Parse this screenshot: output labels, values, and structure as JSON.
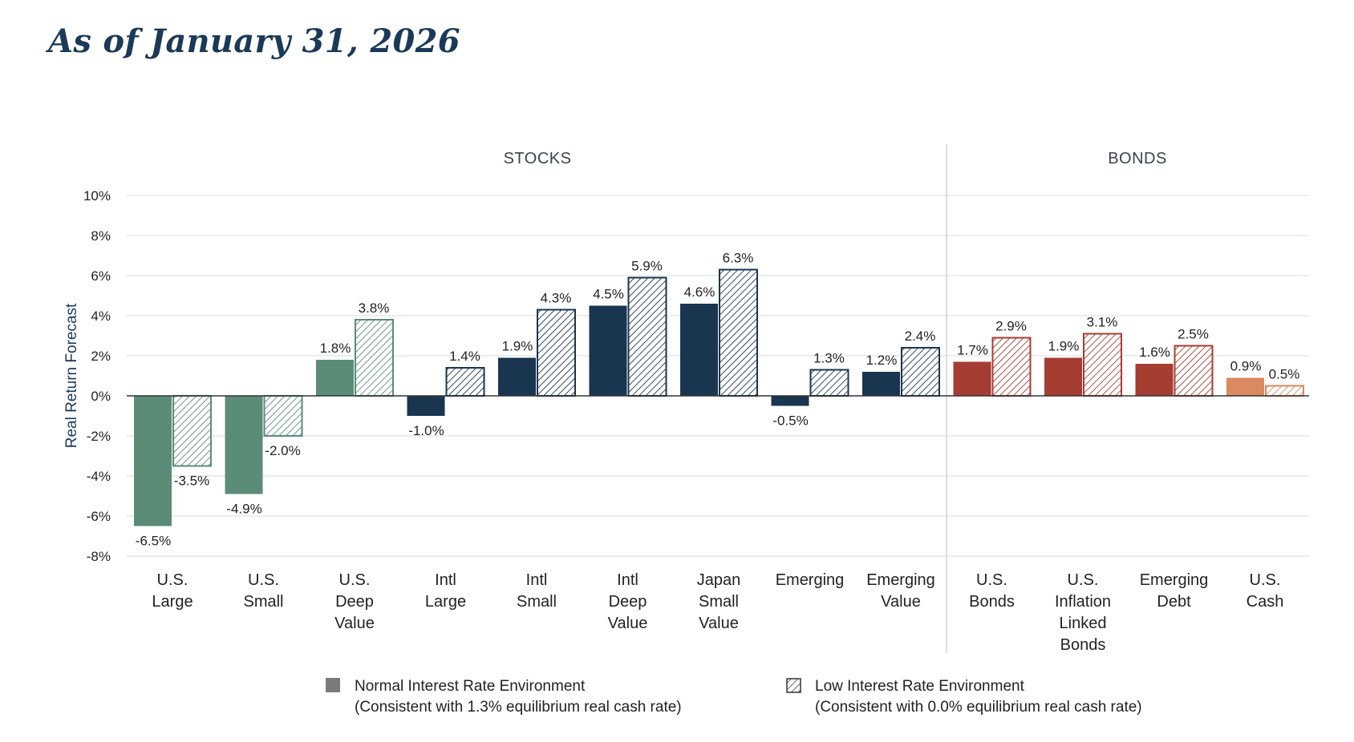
{
  "page": {
    "title": "As of January 31, 2026"
  },
  "chart_data": {
    "type": "bar",
    "title": "",
    "ylabel": "Real Return Forecast",
    "ylim": [
      -8,
      10
    ],
    "yticks": [
      10,
      8,
      6,
      4,
      2,
      0,
      -2,
      -4,
      -6,
      -8
    ],
    "ytick_labels": [
      "10%",
      "8%",
      "6%",
      "4%",
      "2%",
      "0%",
      "-2%",
      "-4%",
      "-6%",
      "-8%"
    ],
    "grid": true,
    "sections": [
      {
        "label": "STOCKS",
        "categories": [
          0,
          1,
          2,
          3,
          4,
          5,
          6,
          7,
          8
        ]
      },
      {
        "label": "BONDS",
        "categories": [
          9,
          10,
          11,
          12
        ]
      }
    ],
    "categories": [
      {
        "lines": [
          "U.S.",
          "Large"
        ],
        "normal": -6.5,
        "low": -3.5,
        "normal_label": "-6.5%",
        "low_label": "-3.5%",
        "color": "#5b8c77"
      },
      {
        "lines": [
          "U.S.",
          "Small"
        ],
        "normal": -4.9,
        "low": -2.0,
        "normal_label": "-4.9%",
        "low_label": "-2.0%",
        "color": "#5b8c77"
      },
      {
        "lines": [
          "U.S.",
          "Deep",
          "Value"
        ],
        "normal": 1.8,
        "low": 3.8,
        "normal_label": "1.8%",
        "low_label": "3.8%",
        "color": "#5b8c77"
      },
      {
        "lines": [
          "Intl",
          "Large"
        ],
        "normal": -1.0,
        "low": 1.4,
        "normal_label": "-1.0%",
        "low_label": "1.4%",
        "color": "#1a3550"
      },
      {
        "lines": [
          "Intl",
          "Small"
        ],
        "normal": 1.9,
        "low": 4.3,
        "normal_label": "1.9%",
        "low_label": "4.3%",
        "color": "#1a3550"
      },
      {
        "lines": [
          "Intl",
          "Deep",
          "Value"
        ],
        "normal": 4.5,
        "low": 5.9,
        "normal_label": "4.5%",
        "low_label": "5.9%",
        "color": "#1a3550"
      },
      {
        "lines": [
          "Japan",
          "Small",
          "Value"
        ],
        "normal": 4.6,
        "low": 6.3,
        "normal_label": "4.6%",
        "low_label": "6.3%",
        "color": "#1a3550"
      },
      {
        "lines": [
          "Emerging"
        ],
        "normal": -0.5,
        "low": 1.3,
        "normal_label": "-0.5%",
        "low_label": "1.3%",
        "color": "#1a3550"
      },
      {
        "lines": [
          "Emerging",
          "Value"
        ],
        "normal": 1.2,
        "low": 2.4,
        "normal_label": "1.2%",
        "low_label": "2.4%",
        "color": "#1a3550"
      },
      {
        "lines": [
          "U.S.",
          "Bonds"
        ],
        "normal": 1.7,
        "low": 2.9,
        "normal_label": "1.7%",
        "low_label": "2.9%",
        "color": "#a63d33"
      },
      {
        "lines": [
          "U.S.",
          "Inflation",
          "Linked",
          "Bonds"
        ],
        "normal": 1.9,
        "low": 3.1,
        "normal_label": "1.9%",
        "low_label": "3.1%",
        "color": "#a63d33"
      },
      {
        "lines": [
          "Emerging",
          "Debt"
        ],
        "normal": 1.6,
        "low": 2.5,
        "normal_label": "1.6%",
        "low_label": "2.5%",
        "color": "#a63d33"
      },
      {
        "lines": [
          "U.S.",
          "Cash"
        ],
        "normal": 0.9,
        "low": 0.5,
        "normal_label": "0.9%",
        "low_label": "0.5%",
        "color": "#d98a5e"
      }
    ],
    "series": [
      {
        "name": "Normal Interest Rate Environment",
        "note": "(Consistent with 1.3% equilibrium real cash rate)",
        "style": "solid",
        "swatch_color": "#7a7a7a"
      },
      {
        "name": "Low Interest Rate Environment",
        "note": "(Consistent with 0.0% equilibrium real cash rate)",
        "style": "hatched",
        "swatch_color": "#555555"
      }
    ],
    "legend_position": "bottom"
  }
}
